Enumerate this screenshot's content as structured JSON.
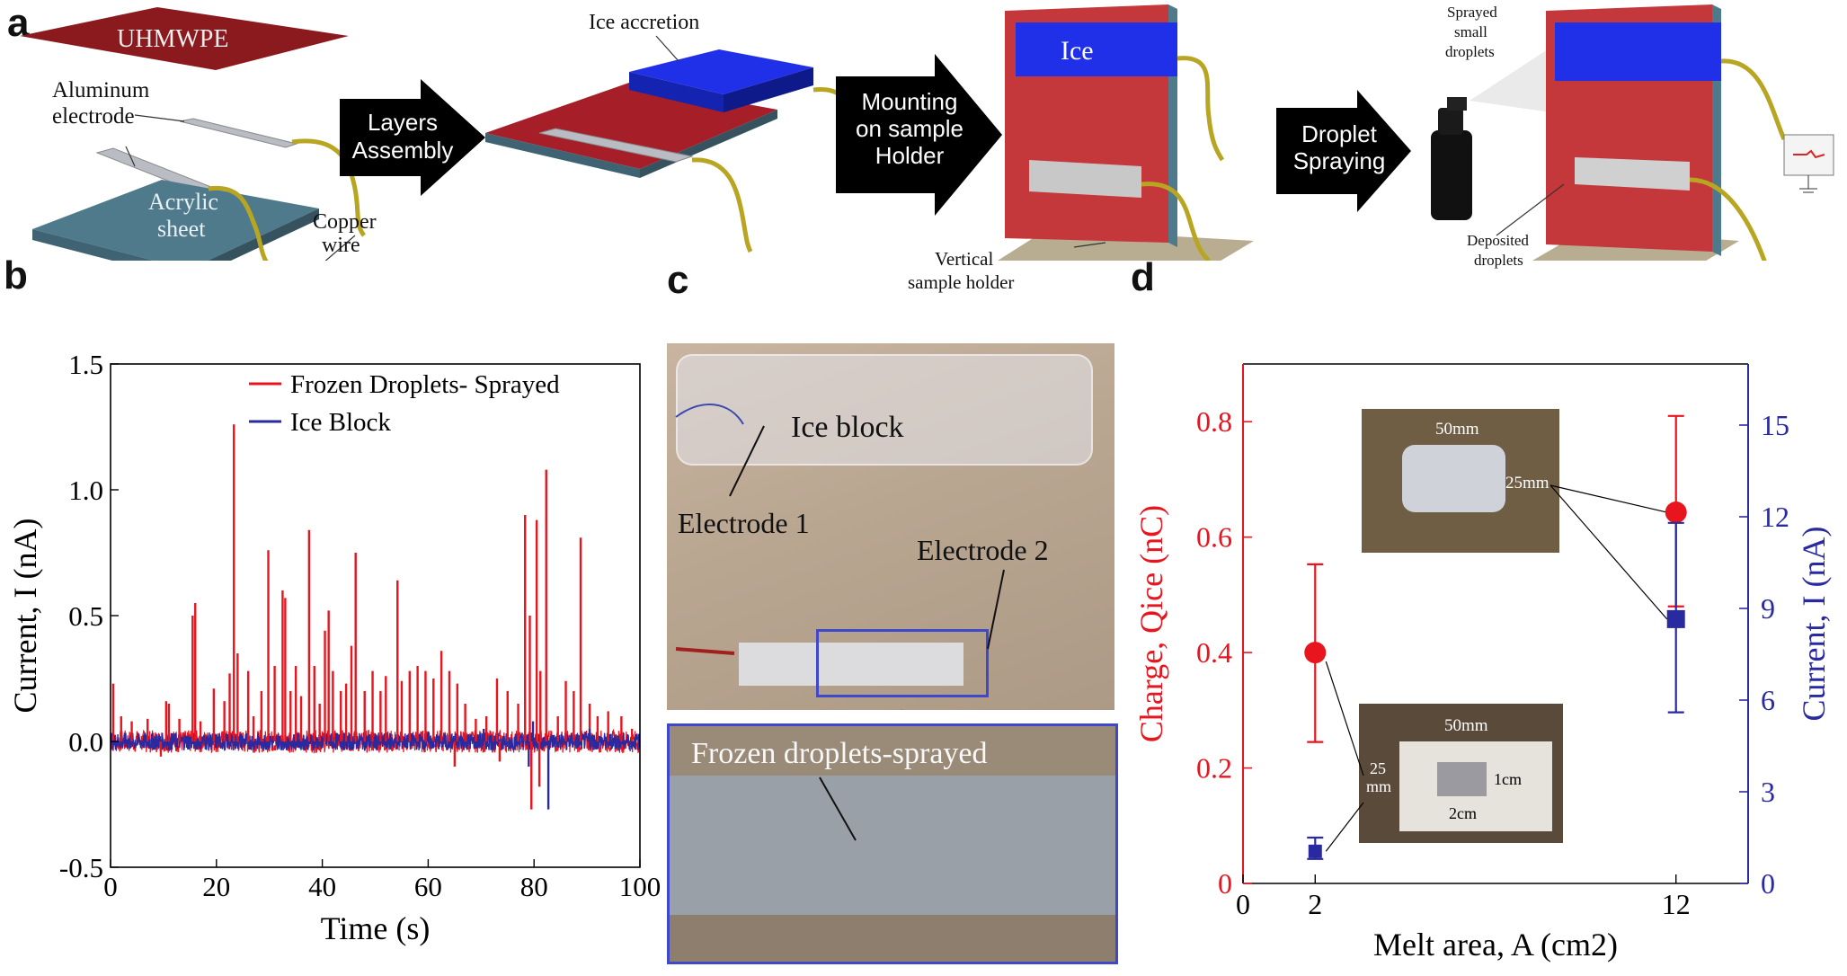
{
  "panels": {
    "a": "a",
    "b": "b",
    "c": "c",
    "d": "d"
  },
  "panel_a": {
    "uhmwpe": "UHMWPE",
    "aluminum": "Aluminum",
    "electrode": "electrode",
    "acrylic": "Acrylic",
    "sheet": "sheet",
    "copper": "Copper",
    "wire": "wire",
    "arrow1": [
      "Layers",
      "Assembly"
    ],
    "ice_accretion": "Ice accretion",
    "arrow2": [
      "Mounting",
      "on sample",
      "Holder"
    ],
    "ice": "Ice",
    "vertical": "Vertical",
    "sample_holder": "sample holder",
    "arrow3": [
      "Droplet",
      "Spraying"
    ],
    "sprayed": [
      "Sprayed",
      "small",
      "droplets"
    ],
    "deposited": [
      "Deposited",
      "droplets"
    ]
  },
  "panel_c": {
    "ice_block": "Ice block",
    "electrode1": "Electrode 1",
    "electrode2": "Electrode 2",
    "frozen": "Frozen droplets-sprayed"
  },
  "colors": {
    "red": "#e8141e",
    "blue": "#2a2aa0",
    "uhmwpe": "#8b1a1f",
    "acrylic": "#4f7a8c",
    "ice": "#1a2ce0"
  },
  "chart_data": [
    {
      "type": "line",
      "xlabel": "Time (s)",
      "ylabel": "Current, I (nA)",
      "xlim": [
        0,
        100
      ],
      "ylim": [
        -0.5,
        1.5
      ],
      "xticks": [
        0,
        20,
        40,
        60,
        80,
        100
      ],
      "yticks": [
        -0.5,
        0.0,
        0.5,
        1.0,
        1.5
      ],
      "xtick_labels": [
        "0",
        "20",
        "40",
        "60",
        "80",
        "100"
      ],
      "ytick_labels": [
        "-0.5",
        "0.0",
        "0.5",
        "1.0",
        "1.5"
      ],
      "legend_position": "top-right",
      "series": [
        {
          "name": "Frozen Droplets- Sprayed",
          "color": "#e8141e",
          "spikes": [
            [
              0.5,
              0.23
            ],
            [
              2,
              0.1
            ],
            [
              4,
              0.08
            ],
            [
              7,
              0.09
            ],
            [
              9.5,
              -0.06
            ],
            [
              10.5,
              0.16
            ],
            [
              11,
              0.15
            ],
            [
              13,
              0.09
            ],
            [
              15.5,
              0.5
            ],
            [
              16,
              0.55
            ],
            [
              17,
              0.08
            ],
            [
              19.5,
              0.21
            ],
            [
              21.5,
              0.16
            ],
            [
              22.5,
              0.27
            ],
            [
              23.3,
              1.26
            ],
            [
              24,
              0.35
            ],
            [
              26,
              0.28
            ],
            [
              27,
              0.1
            ],
            [
              28.5,
              0.2
            ],
            [
              29.8,
              0.76
            ],
            [
              31,
              0.3
            ],
            [
              32.5,
              0.6
            ],
            [
              33,
              0.57
            ],
            [
              34,
              0.2
            ],
            [
              35,
              0.3
            ],
            [
              36,
              0.18
            ],
            [
              37.5,
              0.84
            ],
            [
              38.5,
              0.3
            ],
            [
              39.5,
              0.15
            ],
            [
              40.5,
              0.44
            ],
            [
              41.2,
              0.52
            ],
            [
              42,
              0.28
            ],
            [
              43.5,
              0.2
            ],
            [
              44.5,
              0.23
            ],
            [
              45.5,
              0.38
            ],
            [
              46.3,
              0.75
            ],
            [
              48,
              0.2
            ],
            [
              49.5,
              0.28
            ],
            [
              51,
              0.2
            ],
            [
              52,
              0.26
            ],
            [
              54.2,
              0.64
            ],
            [
              55,
              0.24
            ],
            [
              56.5,
              0.28
            ],
            [
              58,
              0.3
            ],
            [
              59.5,
              0.28
            ],
            [
              61,
              0.25
            ],
            [
              62.5,
              0.36
            ],
            [
              64,
              0.28
            ],
            [
              65.5,
              0.23
            ],
            [
              67,
              0.15
            ],
            [
              69,
              0.09
            ],
            [
              71,
              0.1
            ],
            [
              73,
              0.25
            ],
            [
              75,
              0.2
            ],
            [
              77,
              0.15
            ],
            [
              78.3,
              0.9
            ],
            [
              79.2,
              0.5
            ],
            [
              80.5,
              0.88
            ],
            [
              81.2,
              0.28
            ],
            [
              82.3,
              1.08
            ],
            [
              84.5,
              0.1
            ],
            [
              86,
              0.24
            ],
            [
              87.5,
              0.2
            ],
            [
              88.8,
              0.81
            ],
            [
              90.5,
              0.15
            ],
            [
              92,
              0.1
            ],
            [
              94,
              0.12
            ],
            [
              96.5,
              0.1
            ],
            [
              98.5,
              0.05
            ]
          ],
          "neg_spikes": [
            [
              79.5,
              -0.27
            ],
            [
              81,
              -0.18
            ],
            [
              65,
              -0.1
            ],
            [
              73.5,
              -0.08
            ]
          ]
        },
        {
          "name": "Ice Block",
          "color": "#2a2aa0",
          "spikes": [
            [
              60,
              0.04
            ],
            [
              70.5,
              0.05
            ],
            [
              79.8,
              0.08
            ],
            [
              90.5,
              0.05
            ],
            [
              94.5,
              0.03
            ]
          ],
          "neg_spikes": [
            [
              82.7,
              -0.27
            ],
            [
              79,
              -0.1
            ]
          ]
        }
      ]
    },
    {
      "type": "scatter",
      "xlabel": "Melt area, A (cm2)",
      "ylabel_left": "Charge, Qice (nC)",
      "ylabel_right": "Current, I (nA)",
      "xlim": [
        0,
        14
      ],
      "ylim_left": [
        0,
        0.9
      ],
      "ylim_right": [
        0,
        17
      ],
      "xticks": [
        0,
        2,
        12
      ],
      "yticks_left": [
        0,
        0.2,
        0.4,
        0.6,
        0.8
      ],
      "yticks_right": [
        0,
        3,
        6,
        9,
        12,
        15
      ],
      "xtick_labels": [
        "0",
        "2",
        "12"
      ],
      "ytick_labels_left": [
        "0",
        "0.2",
        "0.4",
        "0.6",
        "0.8"
      ],
      "ytick_labels_right": [
        "0",
        "3",
        "6",
        "9",
        "12",
        "15"
      ],
      "series": [
        {
          "axis": "left",
          "marker": "circle",
          "color": "#e8141e",
          "x": [
            2,
            12
          ],
          "y": [
            0.4,
            0.643
          ],
          "err_low": [
            0.245,
            0.48
          ],
          "err_high": [
            0.553,
            0.81
          ]
        },
        {
          "axis": "right",
          "marker": "square",
          "color": "#2a2aa0",
          "x": [
            2,
            12
          ],
          "y": [
            1.05,
            8.65
          ],
          "err_low": [
            0.8,
            5.6
          ],
          "err_high": [
            1.5,
            11.8
          ]
        }
      ],
      "insets": {
        "top": {
          "width_label": "50mm",
          "height_label": "25mm"
        },
        "bottom": {
          "width_label": "50mm",
          "height_label": [
            "25",
            "mm"
          ],
          "inner_w": "2cm",
          "inner_h": "1cm"
        }
      }
    }
  ]
}
